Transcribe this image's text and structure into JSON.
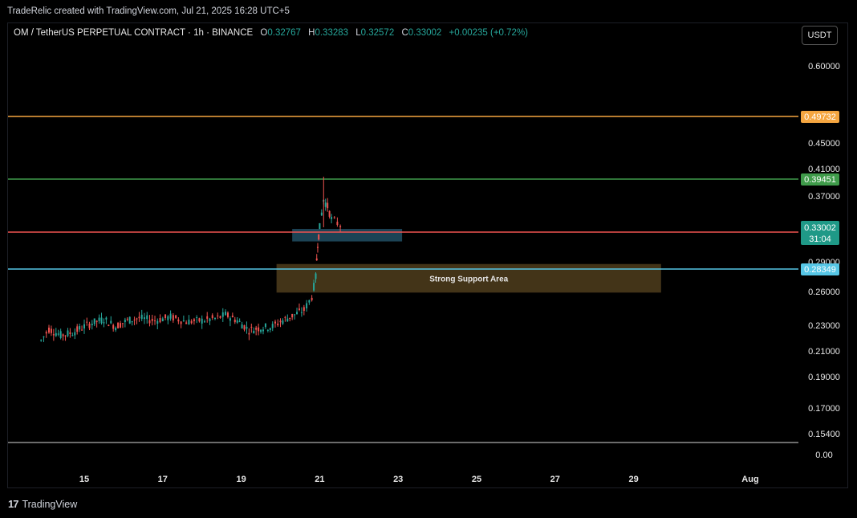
{
  "header": {
    "credit": "TradeRelic created with TradingView.com, Jul 21, 2025 16:28 UTC+5"
  },
  "legend": {
    "symbol": "OM / TetherUS PERPETUAL CONTRACT · 1h · BINANCE",
    "o_label": "O",
    "o_value": "0.32767",
    "h_label": "H",
    "h_value": "0.33283",
    "l_label": "L",
    "l_value": "0.32572",
    "c_label": "C",
    "c_value": "0.33002",
    "change": "+0.00235 (+0.72%)"
  },
  "currency_button": "USDT",
  "footer": {
    "logo_icon": "tradingview-logo-icon",
    "brand": "TradingView"
  },
  "chart_data": {
    "type": "candlestick",
    "y_scale": "log",
    "y_ticks": [
      0.6,
      0.45,
      0.41,
      0.37,
      0.29,
      0.26,
      0.23,
      0.21,
      0.19,
      0.17,
      0.154,
      0.0
    ],
    "y_tick_labels": [
      "0.60000",
      "0.45000",
      "0.41000",
      "0.37000",
      "0.29000",
      "0.26000",
      "0.23000",
      "0.21000",
      "0.19000",
      "0.17000",
      "0.15400",
      "0.00"
    ],
    "x_ticks": [
      15,
      17,
      19,
      21,
      23,
      25,
      27,
      29,
      33
    ],
    "x_tick_labels": [
      "15",
      "17",
      "19",
      "21",
      "23",
      "25",
      "27",
      "29",
      "Aug"
    ],
    "horizontal_lines": [
      {
        "value": 0.49732,
        "label": "0.49732",
        "color": "#f5a640"
      },
      {
        "value": 0.39451,
        "label": "0.39451",
        "color": "#3f9b4a"
      },
      {
        "value": 0.32411,
        "label": "0.32411",
        "color": "#f05350"
      },
      {
        "value": 0.28349,
        "label": "0.28349",
        "color": "#56c6e6"
      }
    ],
    "last_price": {
      "value": 0.33002,
      "label": "0.33002",
      "countdown": "31:04",
      "color": "#1f9987"
    },
    "zones": [
      {
        "label": "Strong Support Area",
        "x_start": 19.9,
        "x_end": 29.7,
        "y_low": 0.259,
        "y_high": 0.288,
        "color": "#4a3a1b"
      },
      {
        "label": "",
        "x_start": 20.3,
        "x_end": 23.1,
        "y_low": 0.313,
        "y_high": 0.328,
        "color": "#1f4a5e"
      }
    ],
    "price_path": [
      [
        13.9,
        0.218
      ],
      [
        14.1,
        0.227
      ],
      [
        14.4,
        0.222
      ],
      [
        14.7,
        0.224
      ],
      [
        15.0,
        0.229
      ],
      [
        15.2,
        0.232
      ],
      [
        15.5,
        0.235
      ],
      [
        15.8,
        0.229
      ],
      [
        16.1,
        0.234
      ],
      [
        16.4,
        0.236
      ],
      [
        16.8,
        0.234
      ],
      [
        17.2,
        0.237
      ],
      [
        17.6,
        0.233
      ],
      [
        18.0,
        0.234
      ],
      [
        18.4,
        0.236
      ],
      [
        18.6,
        0.239
      ],
      [
        18.9,
        0.234
      ],
      [
        19.2,
        0.226
      ],
      [
        19.5,
        0.228
      ],
      [
        19.8,
        0.229
      ],
      [
        20.0,
        0.233
      ],
      [
        20.3,
        0.238
      ],
      [
        20.6,
        0.243
      ],
      [
        20.8,
        0.255
      ],
      [
        20.9,
        0.275
      ],
      [
        20.95,
        0.31
      ],
      [
        21.0,
        0.33
      ],
      [
        21.1,
        0.365
      ],
      [
        21.2,
        0.356
      ],
      [
        21.3,
        0.34
      ],
      [
        21.45,
        0.335
      ],
      [
        21.6,
        0.33
      ]
    ],
    "price_high_low": [
      0.398,
      0.215
    ]
  }
}
